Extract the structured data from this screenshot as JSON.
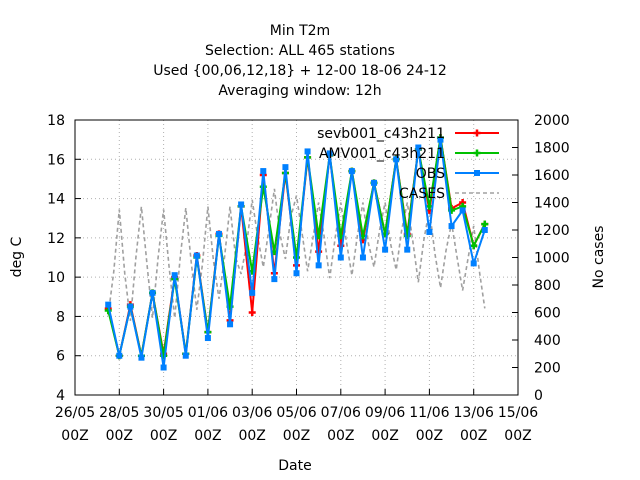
{
  "chart_data": {
    "type": "line",
    "title_lines": [
      "Min T2m",
      "Selection: ALL    465 stations",
      "Used {00,06,12,18} + 12-00 18-06 24-12",
      "Averaging window: 12h"
    ],
    "xlabel": "Date",
    "ylabel": "deg C",
    "y2label": "No cases",
    "xlim": [
      0,
      20
    ],
    "ylim": [
      4,
      18
    ],
    "y2lim": [
      0,
      2000
    ],
    "x_ticks": [
      {
        "x": 0,
        "line1": "26/05",
        "line2": "00Z"
      },
      {
        "x": 2,
        "line1": "28/05",
        "line2": "00Z"
      },
      {
        "x": 4,
        "line1": "30/05",
        "line2": "00Z"
      },
      {
        "x": 6,
        "line1": "01/06",
        "line2": "00Z"
      },
      {
        "x": 8,
        "line1": "03/06",
        "line2": "00Z"
      },
      {
        "x": 10,
        "line1": "05/06",
        "line2": "00Z"
      },
      {
        "x": 12,
        "line1": "07/06",
        "line2": "00Z"
      },
      {
        "x": 14,
        "line1": "09/06",
        "line2": "00Z"
      },
      {
        "x": 16,
        "line1": "11/06",
        "line2": "00Z"
      },
      {
        "x": 18,
        "line1": "13/06",
        "line2": "00Z"
      },
      {
        "x": 20,
        "line1": "15/06",
        "line2": "00Z"
      }
    ],
    "y_ticks": [
      4,
      6,
      8,
      10,
      12,
      14,
      16,
      18
    ],
    "y2_ticks": [
      0,
      200,
      400,
      600,
      800,
      1000,
      1200,
      1400,
      1600,
      1800,
      2000
    ],
    "grid": true,
    "legend_position": "top-right",
    "series": [
      {
        "name": "sevb001_c43h211",
        "color": "#ff0000",
        "marker": "plus",
        "x": [
          1.5,
          2,
          2.5,
          3,
          3.5,
          4,
          4.5,
          5,
          5.5,
          6,
          6.5,
          7,
          7.5,
          8,
          8.5,
          9,
          9.5,
          10,
          10.5,
          11,
          11.5,
          12,
          12.5,
          13,
          13.5,
          14,
          14.5,
          15,
          15.5,
          16,
          16.5,
          17,
          17.5,
          18,
          18.5
        ],
        "values": [
          8.4,
          6.0,
          8.6,
          6.0,
          9.2,
          6.1,
          10.0,
          6.1,
          11.1,
          7.2,
          12.2,
          7.8,
          13.6,
          8.2,
          15.2,
          10.2,
          15.3,
          10.6,
          16.1,
          11.3,
          16.2,
          11.6,
          15.4,
          11.9,
          14.8,
          12.2,
          16.0,
          12.2,
          16.5,
          13.4,
          17.1,
          13.5,
          13.8,
          11.6,
          12.7
        ]
      },
      {
        "name": "AMV001_c43h211",
        "color": "#00c000",
        "marker": "plus",
        "x": [
          1.5,
          2,
          2.5,
          3,
          3.5,
          4,
          4.5,
          5,
          5.5,
          6,
          6.5,
          7,
          7.5,
          8,
          8.5,
          9,
          9.5,
          10,
          10.5,
          11,
          11.5,
          12,
          12.5,
          13,
          13.5,
          14,
          14.5,
          15,
          15.5,
          16,
          16.5,
          17,
          17.5,
          18,
          18.5
        ],
        "values": [
          8.3,
          6.0,
          8.5,
          6.0,
          9.2,
          6.0,
          9.9,
          6.1,
          11.0,
          7.2,
          12.1,
          8.5,
          13.6,
          10.3,
          14.6,
          11.3,
          15.3,
          11.0,
          16.1,
          12.1,
          16.2,
          12.1,
          15.4,
          12.1,
          14.8,
          12.2,
          16.0,
          12.1,
          16.5,
          13.6,
          17.1,
          13.4,
          13.6,
          11.6,
          12.7
        ]
      },
      {
        "name": "OBS",
        "color": "#0080ff",
        "marker": "square",
        "x": [
          1.5,
          2,
          2.5,
          3,
          3.5,
          4,
          4.5,
          5,
          5.5,
          6,
          6.5,
          7,
          7.5,
          8,
          8.5,
          9,
          9.5,
          10,
          10.5,
          11,
          11.5,
          12,
          12.5,
          13,
          13.5,
          14,
          14.5,
          15,
          15.5,
          16,
          16.5,
          17,
          17.5,
          18,
          18.5
        ],
        "values": [
          8.6,
          6.0,
          8.5,
          5.9,
          9.2,
          5.4,
          10.1,
          6.0,
          11.1,
          6.9,
          12.2,
          7.6,
          13.7,
          9.2,
          15.4,
          9.9,
          15.6,
          10.2,
          16.4,
          10.6,
          16.3,
          11.0,
          15.4,
          11.0,
          14.8,
          11.4,
          16.0,
          11.4,
          16.6,
          12.3,
          17.0,
          12.6,
          13.4,
          10.7,
          12.4
        ]
      },
      {
        "name": "CASES",
        "color": "#a0a0a0",
        "axis": "y2",
        "dashed": true,
        "x": [
          1.5,
          1.75,
          2,
          2.25,
          2.5,
          2.75,
          3,
          3.25,
          3.5,
          3.75,
          4,
          4.25,
          4.5,
          4.75,
          5,
          5.25,
          5.5,
          5.75,
          6,
          6.25,
          6.5,
          6.75,
          7,
          7.25,
          7.5,
          7.75,
          8,
          8.25,
          8.5,
          8.75,
          9,
          9.25,
          9.5,
          9.75,
          10,
          10.25,
          10.5,
          10.75,
          11,
          11.25,
          11.5,
          11.75,
          12,
          12.25,
          12.5,
          12.75,
          13,
          13.25,
          13.5,
          13.75,
          14,
          14.25,
          14.5,
          14.75,
          15,
          15.25,
          15.5,
          15.75,
          16,
          16.25,
          16.5,
          16.75,
          17,
          17.25,
          17.5,
          17.75,
          18,
          18.25,
          18.5
        ],
        "values": [
          580,
          900,
          1350,
          880,
          540,
          1000,
          1370,
          950,
          560,
          1000,
          1350,
          930,
          560,
          1000,
          1360,
          960,
          620,
          950,
          1370,
          980,
          700,
          1000,
          1370,
          1000,
          880,
          1100,
          1420,
          1150,
          930,
          1200,
          1500,
          1170,
          990,
          1300,
          1450,
          1180,
          900,
          1150,
          1400,
          1150,
          850,
          1150,
          1400,
          1120,
          870,
          1160,
          1400,
          1100,
          930,
          1200,
          1400,
          1100,
          910,
          1200,
          1400,
          1120,
          820,
          1130,
          1350,
          1030,
          780,
          1050,
          1250,
          1000,
          760,
          1000,
          1230,
          910,
          630
        ]
      }
    ]
  }
}
